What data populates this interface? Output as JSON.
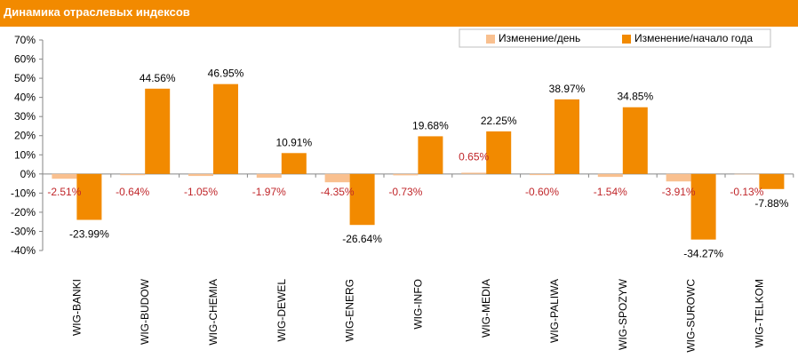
{
  "header": {
    "title": "Динамика отраслевых индексов"
  },
  "chart_data": {
    "type": "bar",
    "title": "Динамика отраслевых индексов",
    "categories": [
      "WIG-BANKI",
      "WIG-BUDOW",
      "WIG-CHEMIA",
      "WIG-DEWEL",
      "WIG-ENERG",
      "WIG-INFO",
      "WIG-MEDIA",
      "WIG-PALIWA",
      "WIG-SPOZYW",
      "WIG-SUROWC",
      "WIG-TELKOM"
    ],
    "series": [
      {
        "name": "Изменение/день",
        "color": "#f9c08f",
        "values": [
          -2.51,
          -0.64,
          -1.05,
          -1.97,
          -4.35,
          -0.73,
          0.65,
          -0.6,
          -1.54,
          -3.91,
          -0.13
        ],
        "labels": [
          "-2.51%",
          "-0.64%",
          "-1.05%",
          "-1.97%",
          "-4.35%",
          "-0.73%",
          "0.65%",
          "-0.60%",
          "-1.54%",
          "-3.91%",
          "-0.13%"
        ]
      },
      {
        "name": "Изменение/начало года",
        "color": "#f28a00",
        "values": [
          -23.99,
          44.56,
          46.95,
          10.91,
          -26.64,
          19.68,
          22.25,
          38.97,
          34.85,
          -34.27,
          -7.88
        ],
        "labels": [
          "-23.99%",
          "44.56%",
          "46.95%",
          "10.91%",
          "-26.64%",
          "19.68%",
          "22.25%",
          "38.97%",
          "34.85%",
          "-34.27%",
          "-7.88%"
        ]
      }
    ],
    "ylim": [
      -40,
      70
    ],
    "yticks": [
      "-40%",
      "-30%",
      "-20%",
      "-10%",
      "0%",
      "10%",
      "20%",
      "30%",
      "40%",
      "50%",
      "60%",
      "70%"
    ],
    "legend": "top-right",
    "grid": false
  }
}
